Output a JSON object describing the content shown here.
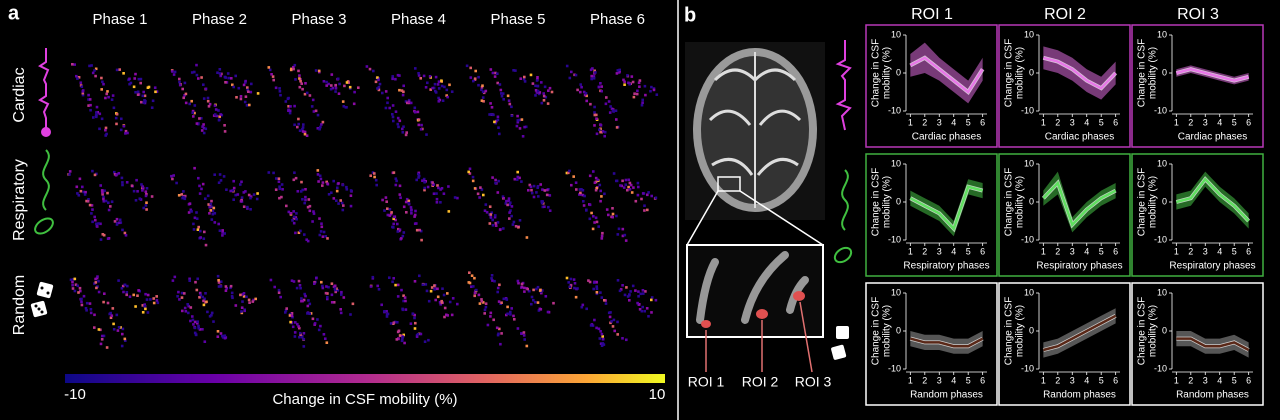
{
  "panel_a": {
    "label": "a",
    "phases": [
      "Phase 1",
      "Phase 2",
      "Phase 3",
      "Phase 4",
      "Phase 5",
      "Phase 6"
    ],
    "rows": [
      "Cardiac",
      "Respiratory",
      "Random"
    ],
    "colorbar": {
      "lim": [
        -10,
        10
      ],
      "ticks": [
        -10,
        10
      ],
      "label": "Change in CSF mobility (%)"
    }
  },
  "panel_b": {
    "label": "b",
    "column_headers": [
      "ROI 1",
      "ROI 2",
      "ROI 3"
    ],
    "roi_labels": [
      "ROI 1",
      "ROI 2",
      "ROI 3"
    ]
  },
  "chart_data": [
    {
      "type": "line",
      "color": "#e878e8",
      "band_color": "#c860c8",
      "border": "#b838b8",
      "x": [
        1,
        2,
        3,
        4,
        5,
        6
      ],
      "xlim": [
        0.7,
        6.3
      ],
      "ylim": [
        -10,
        10
      ],
      "xticks": [
        1,
        2,
        3,
        4,
        5,
        6
      ],
      "yticks": [
        -10,
        0,
        10
      ],
      "ylabel": [
        "Change in CSF",
        "mobility (%)"
      ],
      "xlabel": "Cardiac phases",
      "values": [
        2,
        4,
        1,
        -2,
        -5,
        1
      ],
      "lower": [
        -1,
        0,
        -2,
        -5,
        -8,
        -2
      ],
      "upper": [
        5,
        8,
        4,
        1,
        -2,
        4
      ]
    },
    {
      "type": "line",
      "color": "#e878e8",
      "band_color": "#c860c8",
      "border": "#b838b8",
      "x": [
        1,
        2,
        3,
        4,
        5,
        6
      ],
      "xlim": [
        0.7,
        6.3
      ],
      "ylim": [
        -10,
        10
      ],
      "xticks": [
        1,
        2,
        3,
        4,
        5,
        6
      ],
      "yticks": [
        -10,
        0,
        10
      ],
      "ylabel": [
        "Change in CSF",
        "mobility (%)"
      ],
      "xlabel": "Cardiac phases",
      "values": [
        4,
        3,
        1,
        -2,
        -4,
        0
      ],
      "lower": [
        1,
        0,
        -2,
        -5,
        -7,
        -3
      ],
      "upper": [
        7,
        6,
        4,
        1,
        -1,
        3
      ]
    },
    {
      "type": "line",
      "color": "#e878e8",
      "band_color": "#c860c8",
      "border": "#b838b8",
      "x": [
        1,
        2,
        3,
        4,
        5,
        6
      ],
      "xlim": [
        0.7,
        6.3
      ],
      "ylim": [
        -10,
        10
      ],
      "xticks": [
        1,
        2,
        3,
        4,
        5,
        6
      ],
      "yticks": [
        -10,
        0,
        10
      ],
      "ylabel": [
        "Change in CSF",
        "mobility (%)"
      ],
      "xlabel": "Cardiac phases",
      "values": [
        0,
        1,
        0,
        -1,
        -2,
        -1
      ],
      "lower": [
        -1,
        0,
        -1,
        -2,
        -3,
        -2
      ],
      "upper": [
        1,
        2,
        1,
        0,
        -1,
        0
      ]
    },
    {
      "type": "line",
      "color": "#60e060",
      "band_color": "#40b040",
      "border": "#40b040",
      "x": [
        1,
        2,
        3,
        4,
        5,
        6
      ],
      "xlim": [
        0.7,
        6.3
      ],
      "ylim": [
        -10,
        10
      ],
      "xticks": [
        1,
        2,
        3,
        4,
        5,
        6
      ],
      "yticks": [
        -10,
        0,
        10
      ],
      "ylabel": [
        "Change in CSF",
        "mobility (%)"
      ],
      "xlabel": "Respiratory phases",
      "values": [
        1,
        -1,
        -3,
        -7,
        4,
        3
      ],
      "lower": [
        -1,
        -3,
        -5,
        -9,
        2,
        1
      ],
      "upper": [
        3,
        1,
        -1,
        -5,
        6,
        5
      ]
    },
    {
      "type": "line",
      "color": "#60e060",
      "band_color": "#40b040",
      "border": "#40b040",
      "x": [
        1,
        2,
        3,
        4,
        5,
        6
      ],
      "xlim": [
        0.7,
        6.3
      ],
      "ylim": [
        -10,
        10
      ],
      "xticks": [
        1,
        2,
        3,
        4,
        5,
        6
      ],
      "yticks": [
        -10,
        0,
        10
      ],
      "ylabel": [
        "Change in CSF",
        "mobility (%)"
      ],
      "xlabel": "Respiratory phases",
      "values": [
        1,
        5,
        -6,
        -2,
        1,
        3
      ],
      "lower": [
        -1,
        2,
        -8,
        -4,
        -1,
        1
      ],
      "upper": [
        3,
        8,
        -4,
        0,
        3,
        5
      ]
    },
    {
      "type": "line",
      "color": "#60e060",
      "band_color": "#40b040",
      "border": "#40b040",
      "x": [
        1,
        2,
        3,
        4,
        5,
        6
      ],
      "xlim": [
        0.7,
        6.3
      ],
      "ylim": [
        -10,
        10
      ],
      "xticks": [
        1,
        2,
        3,
        4,
        5,
        6
      ],
      "yticks": [
        -10,
        0,
        10
      ],
      "ylabel": [
        "Change in CSF",
        "mobility (%)"
      ],
      "xlabel": "Respiratory phases",
      "values": [
        0,
        1,
        6,
        2,
        -1,
        -5
      ],
      "lower": [
        -2,
        -1,
        4,
        0,
        -3,
        -7
      ],
      "upper": [
        2,
        3,
        8,
        4,
        1,
        -3
      ]
    },
    {
      "type": "line",
      "color": "#5a2818",
      "band_color": "#909090",
      "border": "#ffffff",
      "x": [
        1,
        2,
        3,
        4,
        5,
        6
      ],
      "xlim": [
        0.7,
        6.3
      ],
      "ylim": [
        -10,
        10
      ],
      "xticks": [
        1,
        2,
        3,
        4,
        5,
        6
      ],
      "yticks": [
        -10,
        0,
        10
      ],
      "ylabel": [
        "Change in CSF",
        "mobility (%)"
      ],
      "xlabel": "Random phases",
      "values": [
        -2,
        -3,
        -3,
        -4,
        -4,
        -2
      ],
      "lower": [
        -4,
        -5,
        -5,
        -6,
        -6,
        -4
      ],
      "upper": [
        0,
        -1,
        -1,
        -2,
        -2,
        0
      ]
    },
    {
      "type": "line",
      "color": "#5a2818",
      "band_color": "#909090",
      "border": "#ffffff",
      "x": [
        1,
        2,
        3,
        4,
        5,
        6
      ],
      "xlim": [
        0.7,
        6.3
      ],
      "ylim": [
        -10,
        10
      ],
      "xticks": [
        1,
        2,
        3,
        4,
        5,
        6
      ],
      "yticks": [
        -10,
        0,
        10
      ],
      "ylabel": [
        "Change in CSF",
        "mobility (%)"
      ],
      "xlabel": "Random phases",
      "values": [
        -5,
        -4,
        -2,
        0,
        2,
        4
      ],
      "lower": [
        -7,
        -6,
        -4,
        -2,
        0,
        2
      ],
      "upper": [
        -3,
        -2,
        0,
        2,
        4,
        6
      ]
    },
    {
      "type": "line",
      "color": "#5a2818",
      "band_color": "#909090",
      "border": "#ffffff",
      "x": [
        1,
        2,
        3,
        4,
        5,
        6
      ],
      "xlim": [
        0.7,
        6.3
      ],
      "ylim": [
        -10,
        10
      ],
      "xticks": [
        1,
        2,
        3,
        4,
        5,
        6
      ],
      "yticks": [
        -10,
        0,
        10
      ],
      "ylabel": [
        "Change in CSF",
        "mobility (%)"
      ],
      "xlabel": "Random phases",
      "values": [
        -2,
        -2,
        -4,
        -4,
        -3,
        -5
      ],
      "lower": [
        -4,
        -4,
        -6,
        -6,
        -5,
        -7
      ],
      "upper": [
        0,
        0,
        -2,
        -2,
        -1,
        -3
      ]
    }
  ]
}
